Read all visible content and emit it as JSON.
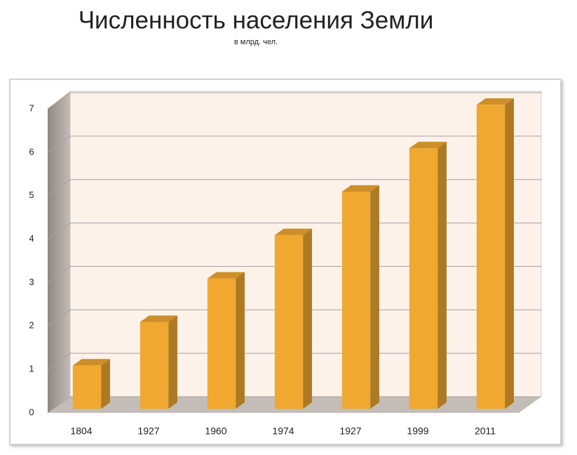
{
  "chart_data": {
    "type": "bar3d",
    "title": "Численность населения Земли",
    "subtitle": "в млрд. чел.",
    "categories": [
      "1804",
      "1927",
      "1960",
      "1974",
      "1927",
      "1999",
      "2011"
    ],
    "values": [
      1,
      2,
      3,
      4,
      5,
      6,
      7
    ],
    "color": "#f0a830",
    "ylim": [
      0,
      7
    ],
    "yticks": [
      0,
      1,
      2,
      3,
      4,
      5,
      6,
      7
    ],
    "grid": true
  }
}
